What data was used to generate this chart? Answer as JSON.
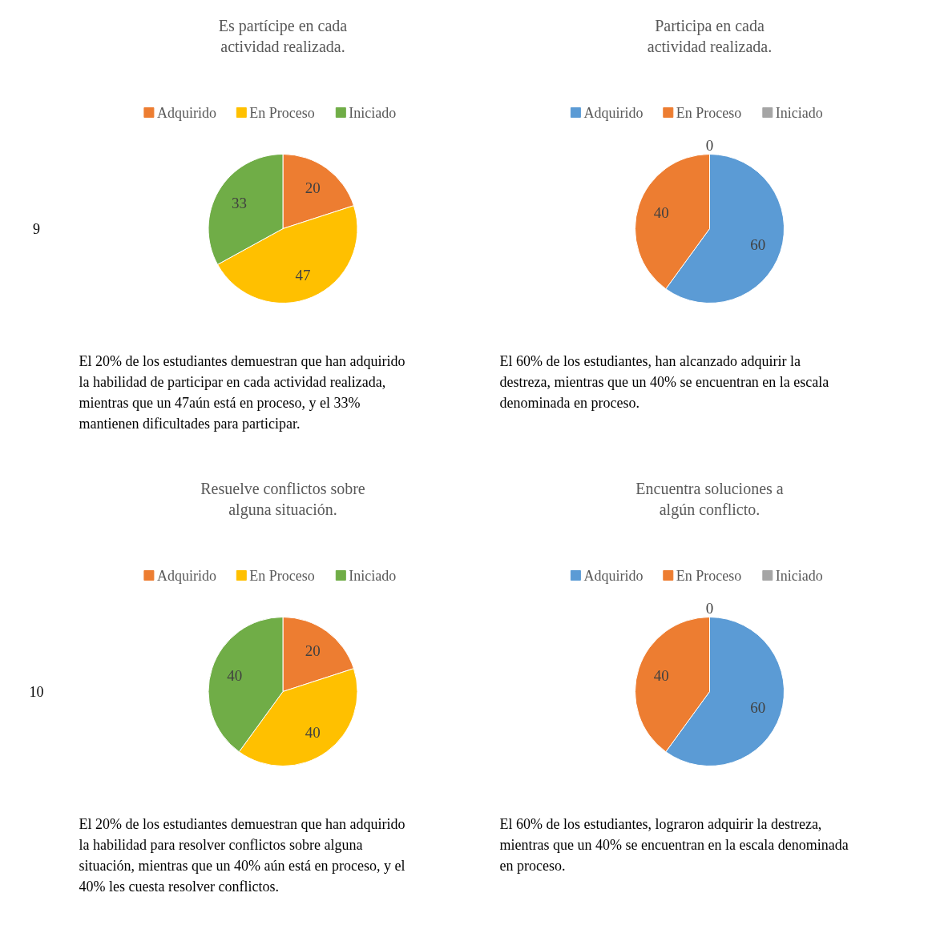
{
  "chart_data": [
    {
      "type": "pie",
      "title": "Es partícipe en cada actividad realizada.",
      "categories": [
        "Adquirido",
        "En Proceso",
        "Iniciado"
      ],
      "values": [
        20,
        47,
        33
      ],
      "colors": [
        "#ed7d31",
        "#ffc000",
        "#70ad47"
      ],
      "legend": "top",
      "data_labels": true,
      "annotations": [
        "9",
        "El 20% de los estudiantes demuestran que han adquirido la habilidad de participar en cada actividad realizada, mientras que un 47aún está en proceso, y el 33% mantienen dificultades para participar."
      ]
    },
    {
      "type": "pie",
      "title": "Participa en cada actividad realizada.",
      "categories": [
        "Adquirido",
        "En Proceso",
        "Iniciado"
      ],
      "values": [
        60,
        40,
        0
      ],
      "value_labels": [
        "60",
        "40",
        "0"
      ],
      "colors": [
        "#5b9bd5",
        "#ed7d31",
        "#a5a5a5"
      ],
      "legend": "top",
      "annotations": [
        "El 60% de los estudiantes, han alcanzado adquirir la destreza, mientras que un 40% se encuentran en la escala denominada en proceso."
      ]
    },
    {
      "type": "pie",
      "title": "Resuelve conflictos sobre alguna situación.",
      "categories": [
        "Adquirido",
        "En Proceso",
        "Iniciado"
      ],
      "values": [
        20,
        40,
        40
      ],
      "colors": [
        "#ed7d31",
        "#ffc000",
        "#70ad47"
      ],
      "legend": "top",
      "data_labels": true,
      "annotations": [
        "10",
        "El 20% de los estudiantes demuestran que han adquirido la habilidad para resolver conflictos sobre alguna situación, mientras que un 40% aún está en proceso, y el 40% les cuesta resolver conflictos."
      ]
    },
    {
      "type": "pie",
      "title": "Encuentra soluciones a algún conflicto.",
      "categories": [
        "Adquirido",
        "En Proceso",
        "Iniciado"
      ],
      "values": [
        60,
        40,
        0
      ],
      "value_labels": [
        "60",
        "40",
        "0"
      ],
      "colors": [
        "#5b9bd5",
        "#ed7d31",
        "#a5a5a5"
      ],
      "legend": "top",
      "annotations": [
        "El 60% de los estudiantes, lograron adquirir la destreza, mientras que un 40% se encuentran en la escala denominada en proceso."
      ]
    }
  ]
}
